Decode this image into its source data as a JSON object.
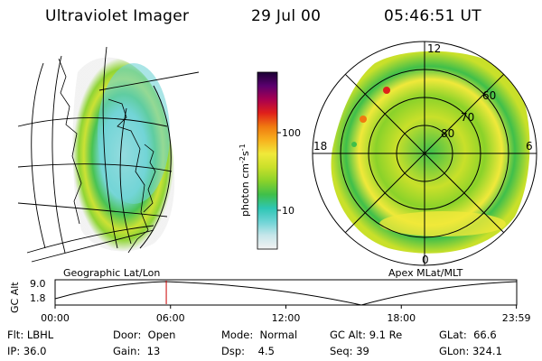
{
  "header": {
    "instrument": "Ultraviolet Imager",
    "date": "29 Jul 00",
    "time": "05:46:51 UT"
  },
  "left_panel": {
    "caption": "Geographic Lat/Lon"
  },
  "right_panel": {
    "caption": "Apex MLat/MLT",
    "mlt_labels": {
      "top": "12",
      "left": "18",
      "right": "6",
      "bottom": "0"
    },
    "mlat_labels": [
      "60",
      "70",
      "80"
    ]
  },
  "colorbar": {
    "unit_main": "photon cm",
    "unit_sup1": "-2",
    "unit_mid": "s",
    "unit_sup2": "-1",
    "ticks": [
      "100",
      "10"
    ],
    "scale": "log",
    "colors": [
      "#f2f2f2",
      "#c7e6ea",
      "#6fd4d6",
      "#2ec6b4",
      "#3fbf4a",
      "#8ad22a",
      "#c9e02a",
      "#f0e93a",
      "#f7b21e",
      "#f07a10",
      "#e0201a",
      "#a80050",
      "#5a006e",
      "#1a0033"
    ]
  },
  "altitude_plot": {
    "ylabel": "GC Alt",
    "yticks": [
      "9.0",
      "1.8"
    ],
    "xticks": [
      "00:00",
      "06:00",
      "12:00",
      "18:00",
      "23:59"
    ],
    "marker_hour": 5.78,
    "marker_color": "#cc0000"
  },
  "info": {
    "row1": [
      {
        "label": "Flt:",
        "value": "LBHL"
      },
      {
        "label": "Door:",
        "value": "Open"
      },
      {
        "label": "Mode:",
        "value": "Normal"
      },
      {
        "label": "GC Alt:",
        "value": "9.1 Re"
      },
      {
        "label": "GLat:",
        "value": "66.6"
      }
    ],
    "row2": [
      {
        "label": "IP:",
        "value": "36.0"
      },
      {
        "label": "Gain:",
        "value": "13"
      },
      {
        "label": "Dsp:",
        "value": "4.5"
      },
      {
        "label": "Seq:",
        "value": "39"
      },
      {
        "label": "GLon:",
        "value": "324.1"
      }
    ]
  }
}
